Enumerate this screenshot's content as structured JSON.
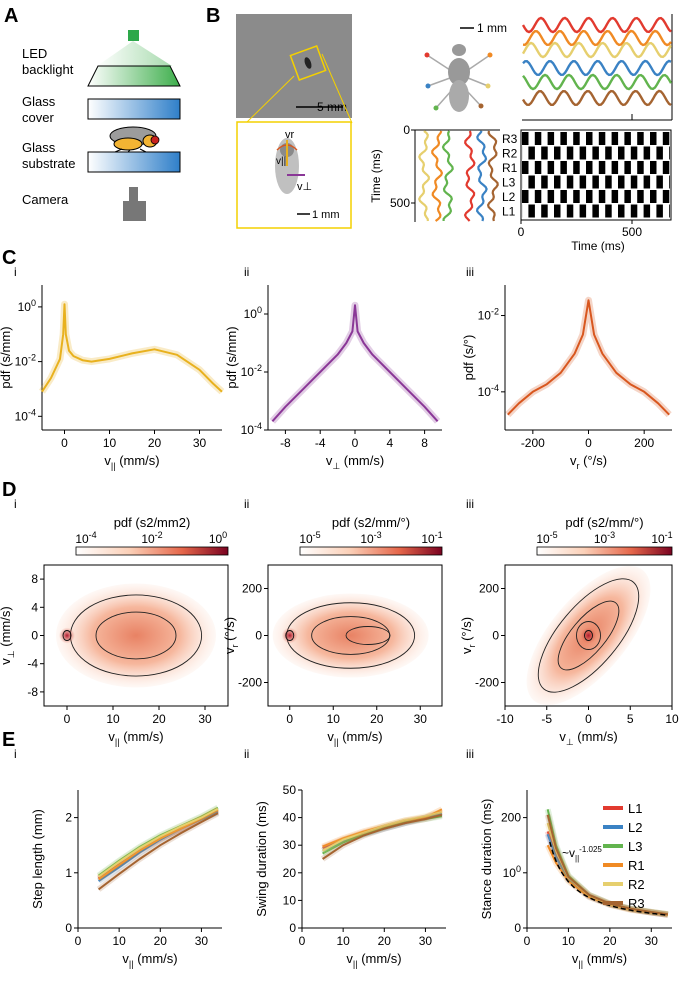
{
  "panels": {
    "A": "A",
    "B": "B",
    "C": "C",
    "D": "D",
    "E": "E",
    "sub_i": "i",
    "sub_ii": "ii",
    "sub_iii": "iii"
  },
  "setup": {
    "led": [
      "LED",
      "backlight"
    ],
    "cover": [
      "Glass",
      "cover"
    ],
    "substrate": [
      "Glass",
      "substrate"
    ],
    "camera": "Camera"
  },
  "panel_b": {
    "scale_5mm": "5 mm",
    "scale_1mm_inset": "1 mm",
    "scale_1mm_fly": "1 mm",
    "vr_label": "vr",
    "vpar_label": "v||",
    "vperp_label": "v⊥",
    "time_ylabel": "Time (ms)",
    "time_ticks": [
      "0",
      "500"
    ],
    "legs": [
      "R3",
      "R2",
      "R1",
      "L3",
      "L2",
      "L1"
    ],
    "gait_xlabel": "Time (ms)",
    "gait_xticks": [
      "0",
      "500"
    ]
  },
  "colors": {
    "L1": "#e23a2f",
    "L2": "#3a82c4",
    "L3": "#62b44e",
    "R1": "#f08a24",
    "R2": "#e6cf6e",
    "R3": "#a56431",
    "vpar": "#e8b11e",
    "vperp": "#8a3797",
    "vr": "#d8571f"
  },
  "chart_data": [
    {
      "id": "Ci",
      "type": "line",
      "title": "i",
      "xlabel": "v|| (mm/s)",
      "ylabel": "pdf (s/mm)",
      "xlim": [
        -5,
        35
      ],
      "ylim_log10": [
        -4.5,
        0.8
      ],
      "xticks": [
        "0",
        "10",
        "20",
        "30"
      ],
      "yticks": [
        "10-4",
        "10-2",
        "100"
      ],
      "series": [
        {
          "name": "v||",
          "x": [
            -5,
            -3,
            -1,
            -0.3,
            0,
            0.3,
            1,
            2,
            4,
            6,
            10,
            15,
            20,
            25,
            30,
            33,
            35
          ],
          "log10_y": [
            -3.1,
            -2.6,
            -1.9,
            -1.0,
            0.1,
            -1.0,
            -1.6,
            -1.8,
            -1.95,
            -2.0,
            -1.9,
            -1.7,
            -1.55,
            -1.75,
            -2.3,
            -2.8,
            -3.1
          ]
        }
      ]
    },
    {
      "id": "Cii",
      "type": "line",
      "title": "ii",
      "xlabel": "v⊥ (mm/s)",
      "ylabel": "pdf (s/mm)",
      "xlim": [
        -10,
        10
      ],
      "ylim_log10": [
        -4,
        1
      ],
      "xticks": [
        "-8",
        "-4",
        "0",
        "4",
        "8"
      ],
      "yticks": [
        "10-4",
        "10-2",
        "100"
      ],
      "series": [
        {
          "name": "v⊥",
          "x": [
            -9.5,
            -8,
            -6,
            -4,
            -2,
            -1,
            -0.3,
            0,
            0.3,
            1,
            2,
            4,
            6,
            8,
            9.5
          ],
          "log10_y": [
            -3.7,
            -3.2,
            -2.6,
            -2.0,
            -1.4,
            -1.0,
            -0.6,
            0.3,
            -0.6,
            -1.0,
            -1.4,
            -2.0,
            -2.6,
            -3.2,
            -3.7
          ]
        }
      ]
    },
    {
      "id": "Ciii",
      "type": "line",
      "title": "iii",
      "xlabel": "vr (°/s)",
      "ylabel": "pdf (s/°)",
      "xlim": [
        -300,
        300
      ],
      "ylim_log10": [
        -5,
        -1.2
      ],
      "xticks": [
        "-200",
        "0",
        "200"
      ],
      "yticks": [
        "10-4",
        "10-2"
      ],
      "series": [
        {
          "name": "vr",
          "x": [
            -290,
            -250,
            -200,
            -150,
            -100,
            -50,
            -20,
            0,
            20,
            50,
            100,
            150,
            200,
            250,
            290
          ],
          "log10_y": [
            -4.6,
            -4.3,
            -4.0,
            -3.8,
            -3.5,
            -3.0,
            -2.5,
            -1.6,
            -2.5,
            -3.0,
            -3.5,
            -3.8,
            -4.0,
            -4.3,
            -4.6
          ]
        }
      ]
    },
    {
      "id": "Di",
      "type": "heatmap",
      "title": "pdf (s2/mm2)",
      "xlabel": "v|| (mm/s)",
      "ylabel": "v⊥ (mm/s)",
      "xlim": [
        -5,
        35
      ],
      "ylim": [
        -10,
        10
      ],
      "xticks": [
        "0",
        "10",
        "20",
        "30"
      ],
      "yticks": [
        "8",
        "4",
        "0",
        "-4",
        "-8"
      ],
      "colorbar_ticks": [
        "10-4",
        "10-2",
        "100"
      ]
    },
    {
      "id": "Dii",
      "type": "heatmap",
      "title": "pdf (s2/mm/°)",
      "xlabel": "v|| (mm/s)",
      "ylabel": "vr (°/s)",
      "xlim": [
        -5,
        35
      ],
      "ylim": [
        -300,
        300
      ],
      "xticks": [
        "0",
        "10",
        "20",
        "30"
      ],
      "yticks": [
        "200",
        "0",
        "-200"
      ],
      "colorbar_ticks": [
        "10-5",
        "10-3",
        "10-1"
      ]
    },
    {
      "id": "Diii",
      "type": "heatmap",
      "title": "pdf (s2/mm/°)",
      "xlabel": "v⊥ (mm/s)",
      "ylabel": "vr (°/s)",
      "xlim": [
        -10,
        10
      ],
      "ylim": [
        -300,
        300
      ],
      "xticks": [
        "-10",
        "-5",
        "0",
        "5",
        "10"
      ],
      "yticks": [
        "200",
        "0",
        "-200"
      ],
      "colorbar_ticks": [
        "10-5",
        "10-3",
        "10-1"
      ]
    },
    {
      "id": "Ei",
      "type": "line",
      "title": "i",
      "xlabel": "v|| (mm/s)",
      "ylabel": "Step length (mm)",
      "xlim": [
        0,
        35
      ],
      "ylim": [
        0,
        2.5
      ],
      "xticks": [
        "0",
        "10",
        "20",
        "30"
      ],
      "yticks": [
        "0",
        "1",
        "2"
      ],
      "x": [
        5,
        10,
        15,
        20,
        25,
        30,
        34
      ],
      "series": [
        {
          "name": "L1",
          "values": [
            0.9,
            1.15,
            1.4,
            1.62,
            1.8,
            1.98,
            2.12
          ]
        },
        {
          "name": "L2",
          "values": [
            0.85,
            1.1,
            1.37,
            1.6,
            1.8,
            1.97,
            2.1
          ]
        },
        {
          "name": "L3",
          "values": [
            0.95,
            1.22,
            1.47,
            1.68,
            1.85,
            2.02,
            2.18
          ]
        },
        {
          "name": "R1",
          "values": [
            0.88,
            1.14,
            1.4,
            1.62,
            1.8,
            1.98,
            2.14
          ]
        },
        {
          "name": "R2",
          "values": [
            0.93,
            1.2,
            1.45,
            1.66,
            1.84,
            2.0,
            2.16
          ]
        },
        {
          "name": "R3",
          "values": [
            0.7,
            0.98,
            1.25,
            1.5,
            1.72,
            1.92,
            2.08
          ]
        }
      ]
    },
    {
      "id": "Eii",
      "type": "line",
      "title": "ii",
      "xlabel": "v|| (mm/s)",
      "ylabel": "Swing duration (ms)",
      "xlim": [
        0,
        35
      ],
      "ylim": [
        0,
        50
      ],
      "xticks": [
        "0",
        "10",
        "20",
        "30"
      ],
      "yticks": [
        "0",
        "10",
        "20",
        "30",
        "40",
        "50"
      ],
      "x": [
        5,
        10,
        15,
        20,
        25,
        30,
        34
      ],
      "series": [
        {
          "name": "L1",
          "values": [
            29,
            32,
            34.5,
            36.5,
            38.5,
            40,
            42
          ]
        },
        {
          "name": "L2",
          "values": [
            28,
            31.5,
            34,
            36,
            38,
            40,
            41.5
          ]
        },
        {
          "name": "L3",
          "values": [
            27,
            31,
            34,
            36.5,
            38.5,
            39.5,
            40.5
          ]
        },
        {
          "name": "R1",
          "values": [
            29.5,
            32.5,
            35,
            37,
            39,
            40,
            43
          ]
        },
        {
          "name": "R2",
          "values": [
            28,
            32,
            34.5,
            37,
            39,
            40.5,
            42
          ]
        },
        {
          "name": "R3",
          "values": [
            25,
            30,
            33.5,
            36,
            38,
            39.5,
            41
          ]
        }
      ]
    },
    {
      "id": "Eiii",
      "type": "line",
      "title": "iii",
      "xlabel": "v|| (mm/s)",
      "ylabel": "Stance duration (ms)",
      "xlim": [
        0,
        35
      ],
      "ylim": [
        0,
        250
      ],
      "xticks": [
        "0",
        "10",
        "20",
        "30"
      ],
      "yticks": [
        "0",
        "100",
        "200"
      ],
      "x": [
        5,
        7,
        10,
        15,
        20,
        25,
        30,
        34
      ],
      "series": [
        {
          "name": "L1",
          "values": [
            175,
            130,
            90,
            58,
            43,
            34,
            28,
            24
          ]
        },
        {
          "name": "L2",
          "values": [
            170,
            128,
            88,
            57,
            42,
            34,
            28,
            24
          ]
        },
        {
          "name": "L3",
          "values": [
            215,
            150,
            95,
            60,
            44,
            35,
            29,
            25
          ]
        },
        {
          "name": "R1",
          "values": [
            150,
            118,
            85,
            56,
            42,
            33,
            28,
            24
          ]
        },
        {
          "name": "R2",
          "values": [
            190,
            140,
            92,
            59,
            43,
            34,
            29,
            25
          ]
        },
        {
          "name": "R3",
          "values": [
            205,
            145,
            93,
            60,
            44,
            35,
            29,
            25
          ]
        }
      ],
      "fit_label": "~v||-1.025",
      "legend": [
        "L1",
        "L2",
        "L3",
        "R1",
        "R2",
        "R3"
      ]
    }
  ]
}
